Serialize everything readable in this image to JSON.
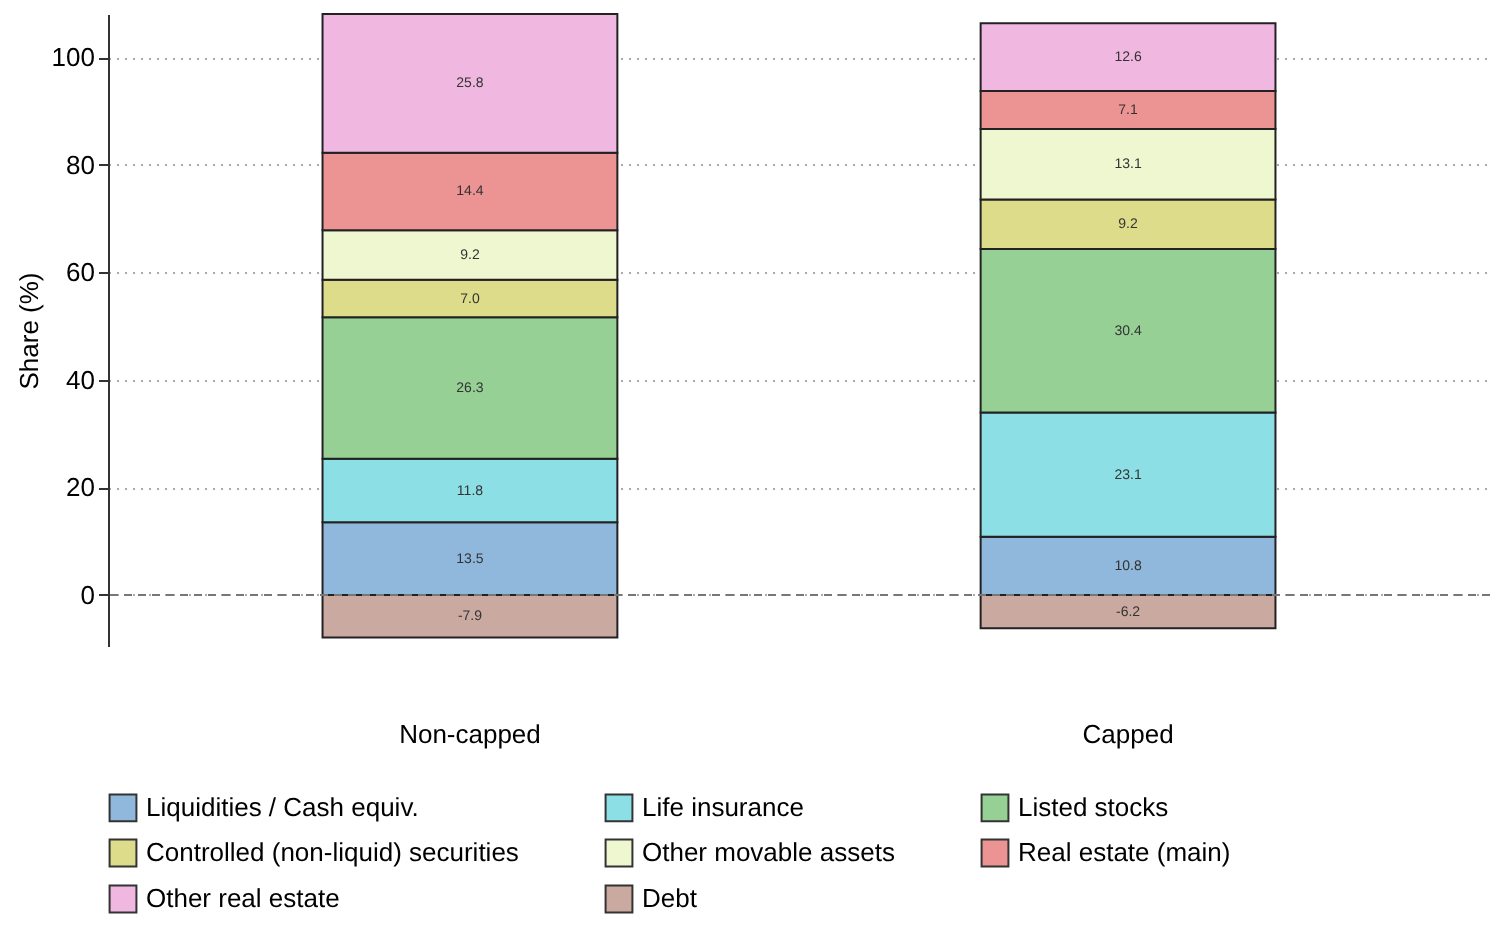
{
  "chart_data": {
    "type": "bar",
    "stacked": true,
    "ylabel": "Share (%)",
    "categories": [
      "Non-capped",
      "Capped"
    ],
    "ylim": [
      -9.5,
      108
    ],
    "yticks": [
      0,
      20,
      40,
      60,
      80,
      100
    ],
    "grid": "y",
    "legend": "bottom",
    "ref_lines": [
      {
        "axis": "y",
        "value": 0,
        "line_style": "dashed",
        "color": "#777777"
      }
    ],
    "series": [
      {
        "name": "Liquidities / Cash equiv.",
        "color": "#8fb8dc",
        "values": [
          13.5,
          10.8
        ],
        "value_labels": [
          "13.5",
          "10.8"
        ]
      },
      {
        "name": "Life insurance",
        "color": "#8ddfe6",
        "values": [
          11.8,
          23.1
        ],
        "value_labels": [
          "11.8",
          "23.1"
        ]
      },
      {
        "name": "Listed stocks",
        "color": "#97d095",
        "values": [
          26.3,
          30.4
        ],
        "value_labels": [
          "26.3",
          "30.4"
        ]
      },
      {
        "name": "Controlled (non-liquid) securities",
        "color": "#dcdc8a",
        "values": [
          7.0,
          9.2
        ],
        "value_labels": [
          "7.0",
          "9.2"
        ]
      },
      {
        "name": "Other movable assets",
        "color": "#eef7cf",
        "values": [
          9.2,
          13.1
        ],
        "value_labels": [
          "9.2",
          "13.1"
        ]
      },
      {
        "name": "Real estate (main)",
        "color": "#ec9393",
        "values": [
          14.4,
          7.1
        ],
        "value_labels": [
          "14.4",
          "7.1"
        ]
      },
      {
        "name": "Other real estate",
        "color": "#f0b8e0",
        "values": [
          25.8,
          12.6
        ],
        "value_labels": [
          "25.8",
          "12.6"
        ]
      },
      {
        "name": "Debt",
        "color": "#c9a9a0",
        "values": [
          -7.9,
          -6.2
        ],
        "value_labels": [
          "-7.9",
          "-6.2"
        ]
      }
    ]
  }
}
